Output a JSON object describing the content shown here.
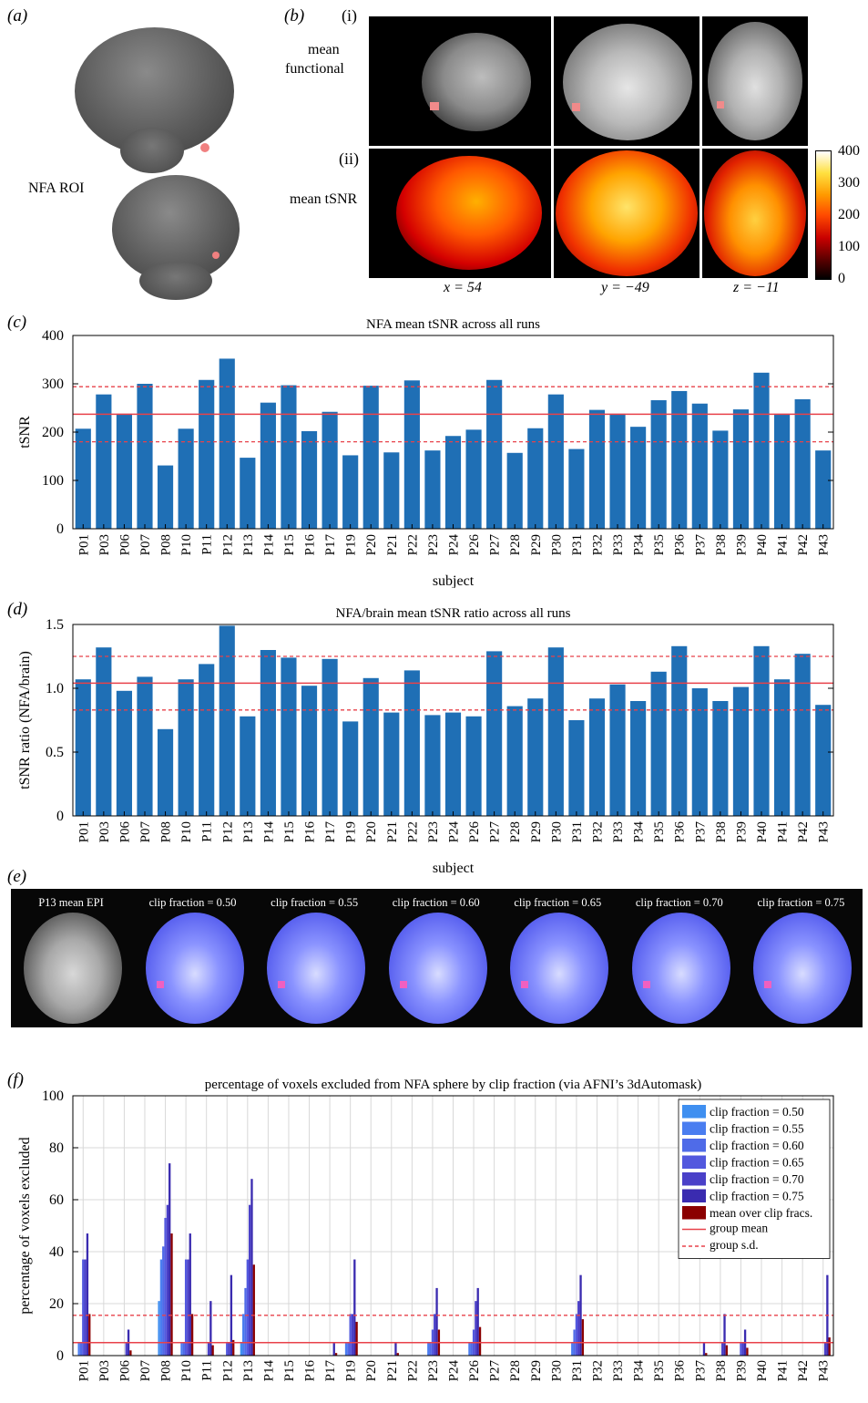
{
  "panel_a": {
    "label": "a",
    "roi_label": "NFA ROI"
  },
  "panel_b": {
    "label": "b",
    "row_i": {
      "numeral": "(i)",
      "label_line1": "mean",
      "label_line2": "functional"
    },
    "row_ii": {
      "numeral": "(ii)",
      "label": "mean tSNR"
    },
    "coords": [
      "x = 54",
      "y = −49",
      "z = −11"
    ],
    "colorbar_ticks": [
      "400",
      "300",
      "200",
      "100",
      "0"
    ]
  },
  "panel_c_label": "c",
  "panel_d_label": "d",
  "panel_e": {
    "label": "e",
    "frames": [
      "P13 mean EPI",
      "clip fraction = 0.50",
      "clip fraction = 0.55",
      "clip fraction = 0.60",
      "clip fraction = 0.65",
      "clip fraction = 0.70",
      "clip fraction = 0.75"
    ]
  },
  "panel_f_label": "f",
  "colors": {
    "bar": "#1f6fb5",
    "ref_line": "#e8424a",
    "mean_bar": "#8b0000"
  },
  "chart_data": [
    {
      "type": "bar",
      "title": "NFA mean tSNR across all runs",
      "xlabel": "subject",
      "ylabel": "tSNR",
      "ylim": [
        0,
        400
      ],
      "yticks": [
        0,
        100,
        200,
        300,
        400
      ],
      "categories": [
        "P01",
        "P03",
        "P06",
        "P07",
        "P08",
        "P10",
        "P11",
        "P12",
        "P13",
        "P14",
        "P15",
        "P16",
        "P17",
        "P19",
        "P20",
        "P21",
        "P22",
        "P23",
        "P24",
        "P26",
        "P27",
        "P28",
        "P29",
        "P30",
        "P31",
        "P32",
        "P33",
        "P34",
        "P35",
        "P36",
        "P37",
        "P38",
        "P39",
        "P40",
        "P41",
        "P42",
        "P43"
      ],
      "values": [
        207,
        278,
        238,
        300,
        131,
        207,
        308,
        352,
        147,
        261,
        297,
        202,
        242,
        152,
        296,
        158,
        307,
        162,
        192,
        205,
        308,
        157,
        208,
        278,
        165,
        246,
        238,
        211,
        266,
        285,
        259,
        203,
        247,
        323,
        238,
        268,
        162
      ],
      "reference_lines": {
        "group_mean": 237,
        "group_sd_upper": 294,
        "group_sd_lower": 180
      },
      "grid": false
    },
    {
      "type": "bar",
      "title": "NFA/brain mean tSNR ratio across all runs",
      "xlabel": "subject",
      "ylabel": "tSNR ratio (NFA/brain)",
      "ylim": [
        0,
        1.5
      ],
      "yticks": [
        "0",
        "0.5",
        "1.0",
        "1.5"
      ],
      "categories": [
        "P01",
        "P03",
        "P06",
        "P07",
        "P08",
        "P10",
        "P11",
        "P12",
        "P13",
        "P14",
        "P15",
        "P16",
        "P17",
        "P19",
        "P20",
        "P21",
        "P22",
        "P23",
        "P24",
        "P26",
        "P27",
        "P28",
        "P29",
        "P30",
        "P31",
        "P32",
        "P33",
        "P34",
        "P35",
        "P36",
        "P37",
        "P38",
        "P39",
        "P40",
        "P41",
        "P42",
        "P43"
      ],
      "values": [
        1.07,
        1.32,
        0.98,
        1.09,
        0.68,
        1.07,
        1.19,
        1.49,
        0.78,
        1.3,
        1.24,
        1.02,
        1.23,
        0.74,
        1.08,
        0.81,
        1.14,
        0.79,
        0.81,
        0.78,
        1.29,
        0.86,
        0.92,
        1.32,
        0.75,
        0.92,
        1.03,
        0.9,
        1.13,
        1.33,
        1.0,
        0.9,
        1.01,
        1.33,
        1.07,
        1.27,
        0.87
      ],
      "reference_lines": {
        "group_mean": 1.04,
        "group_sd_upper": 1.25,
        "group_sd_lower": 0.83
      },
      "grid": false
    },
    {
      "type": "bar",
      "title": "percentage of voxels excluded from NFA sphere by clip fraction (via AFNI’s 3dAutomask)",
      "xlabel": "subject",
      "ylabel": "percentage of voxels excluded",
      "ylim": [
        0,
        100
      ],
      "yticks": [
        0,
        20,
        40,
        60,
        80,
        100
      ],
      "grid": true,
      "legend_position": "top-right",
      "categories": [
        "P01",
        "P03",
        "P06",
        "P07",
        "P08",
        "P10",
        "P11",
        "P12",
        "P13",
        "P14",
        "P15",
        "P16",
        "P17",
        "P19",
        "P20",
        "P21",
        "P22",
        "P23",
        "P24",
        "P26",
        "P27",
        "P28",
        "P29",
        "P30",
        "P31",
        "P32",
        "P33",
        "P34",
        "P35",
        "P36",
        "P37",
        "P38",
        "P39",
        "P40",
        "P41",
        "P42",
        "P43"
      ],
      "series": [
        {
          "name": "clip fraction = 0.50",
          "color": "#3f8ff0",
          "values": [
            0,
            0,
            0,
            0,
            21,
            0,
            0,
            0,
            5,
            0,
            0,
            0,
            0,
            0,
            0,
            0,
            0,
            0,
            0,
            0,
            0,
            0,
            0,
            0,
            0,
            0,
            0,
            0,
            0,
            0,
            0,
            0,
            0,
            0,
            0,
            0,
            0
          ]
        },
        {
          "name": "clip fraction = 0.55",
          "color": "#4a7df0",
          "values": [
            5,
            0,
            0,
            0,
            37,
            5,
            0,
            0,
            16,
            0,
            0,
            0,
            0,
            5,
            0,
            0,
            0,
            5,
            0,
            5,
            0,
            0,
            0,
            0,
            5,
            0,
            0,
            0,
            0,
            0,
            0,
            0,
            0,
            0,
            0,
            0,
            0
          ]
        },
        {
          "name": "clip fraction = 0.60",
          "color": "#4f6be8",
          "values": [
            5,
            0,
            0,
            0,
            42,
            5,
            0,
            0,
            26,
            0,
            0,
            0,
            0,
            5,
            0,
            0,
            0,
            5,
            0,
            5,
            0,
            0,
            0,
            0,
            10,
            0,
            0,
            0,
            0,
            0,
            0,
            0,
            0,
            0,
            0,
            0,
            0
          ]
        },
        {
          "name": "clip fraction = 0.65",
          "color": "#5258de",
          "values": [
            37,
            0,
            0,
            0,
            53,
            37,
            0,
            5,
            37,
            0,
            0,
            0,
            0,
            16,
            0,
            0,
            0,
            10,
            0,
            10,
            0,
            0,
            0,
            0,
            16,
            0,
            0,
            0,
            0,
            0,
            0,
            0,
            5,
            0,
            0,
            0,
            0
          ]
        },
        {
          "name": "clip fraction = 0.70",
          "color": "#4a40c8",
          "values": [
            37,
            0,
            5,
            0,
            58,
            37,
            5,
            5,
            58,
            0,
            0,
            0,
            0,
            16,
            0,
            0,
            0,
            16,
            0,
            21,
            0,
            0,
            0,
            0,
            21,
            0,
            0,
            0,
            0,
            0,
            0,
            5,
            5,
            0,
            0,
            0,
            5
          ]
        },
        {
          "name": "clip fraction = 0.75",
          "color": "#3a2bb0",
          "values": [
            47,
            0,
            10,
            0,
            74,
            47,
            21,
            31,
            68,
            0,
            0,
            0,
            5,
            37,
            0,
            5,
            0,
            26,
            0,
            26,
            0,
            0,
            0,
            0,
            31,
            0,
            0,
            0,
            0,
            0,
            5,
            16,
            10,
            0,
            0,
            0,
            31
          ]
        },
        {
          "name": "mean over clip fracs.",
          "color": "#8b0000",
          "values": [
            16,
            0,
            2,
            0,
            47,
            16,
            4,
            6,
            35,
            0,
            0,
            0,
            1,
            13,
            0,
            1,
            0,
            10,
            0,
            11,
            0,
            0,
            0,
            0,
            14,
            0,
            0,
            0,
            0,
            0,
            1,
            4,
            3,
            0,
            0,
            0,
            7
          ]
        }
      ],
      "reference_lines": {
        "group_mean": 5,
        "group_sd": 15.5
      },
      "legend_extra": [
        "group mean",
        "group s.d."
      ]
    }
  ]
}
